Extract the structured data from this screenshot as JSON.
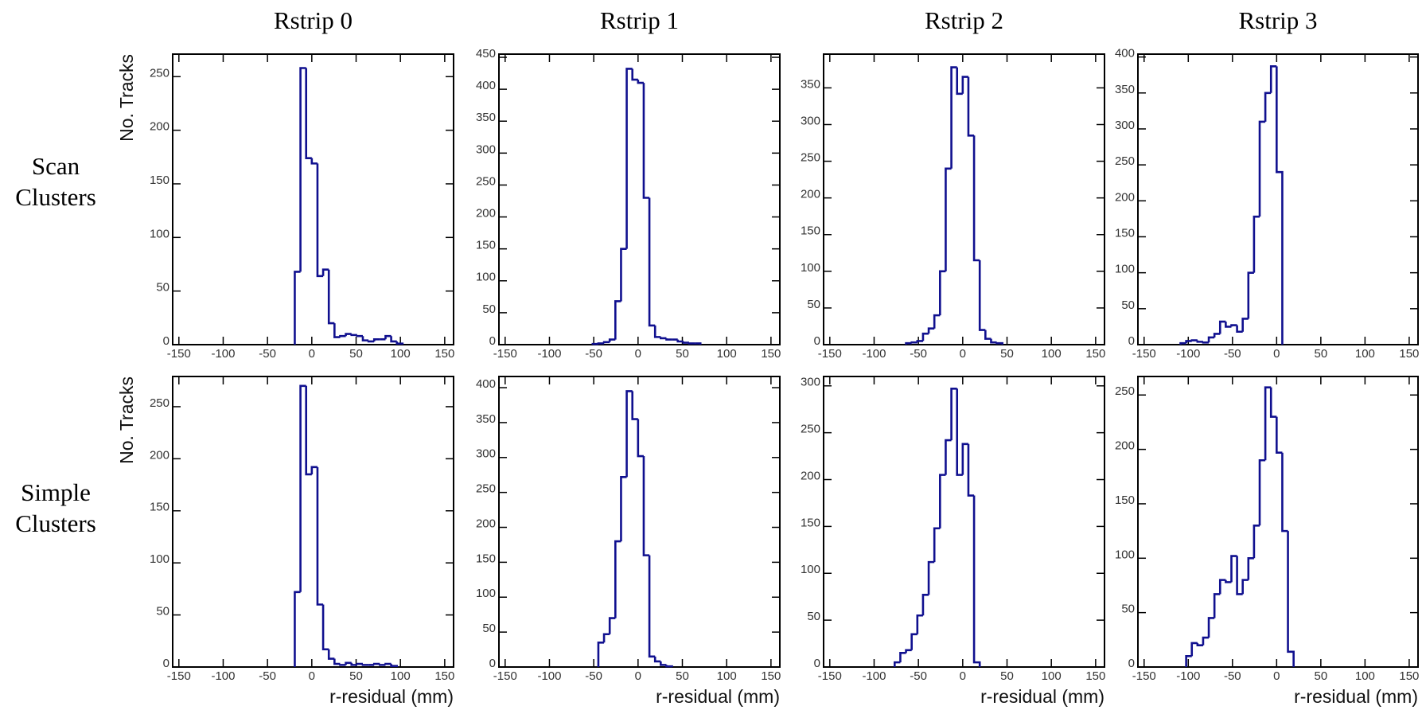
{
  "row_labels": [
    "Scan Clusters",
    "Simple Clusters"
  ],
  "chart_data": [
    {
      "type": "histogram",
      "title": "Rstrip 0",
      "ylabel": "No. Tracks",
      "color": "#10108f",
      "bins": [
        -19.2,
        -12.8,
        -6.4,
        0,
        6.4,
        12.8,
        19.2,
        25.6,
        32,
        38.4,
        44.8,
        51.2,
        57.6,
        64,
        70.4,
        76.8,
        83.2,
        89.6,
        96,
        102.4
      ],
      "values": [
        68,
        258,
        174,
        169,
        64,
        70,
        20,
        7,
        8,
        10,
        9,
        8,
        4,
        3,
        5,
        5,
        8,
        3,
        1
      ],
      "xlim": [
        -157,
        160
      ],
      "xticks": [
        -150,
        -100,
        -50,
        0,
        50,
        100,
        150
      ],
      "ylim": [
        0,
        271
      ],
      "yticks": [
        0,
        50,
        100,
        150,
        200,
        250
      ]
    },
    {
      "type": "histogram",
      "title": "Rstrip 1",
      "color": "#10108f",
      "bins": [
        -51.2,
        -44.8,
        -38.4,
        -32,
        -25.6,
        -19.2,
        -12.8,
        -6.4,
        0,
        6.4,
        12.8,
        19.2,
        25.6,
        32,
        38.4,
        44.8,
        51.2,
        57.6,
        64,
        70.4
      ],
      "values": [
        1,
        2,
        4,
        8,
        68,
        150,
        432,
        415,
        410,
        230,
        30,
        12,
        10,
        8,
        8,
        5,
        3,
        2,
        2
      ],
      "xlim": [
        -157,
        160
      ],
      "xticks": [
        -150,
        -100,
        -50,
        0,
        50,
        100,
        150
      ],
      "ylim": [
        0,
        455
      ],
      "yticks": [
        0,
        50,
        100,
        150,
        200,
        250,
        300,
        350,
        400,
        450
      ]
    },
    {
      "type": "histogram",
      "title": "Rstrip 2",
      "color": "#10108f",
      "bins": [
        -64,
        -57.6,
        -51.2,
        -44.8,
        -38.4,
        -32,
        -25.6,
        -19.2,
        -12.8,
        -6.4,
        0,
        6.4,
        12.8,
        19.2,
        25.6,
        32,
        38.4,
        44.8
      ],
      "values": [
        2,
        3,
        5,
        15,
        22,
        40,
        100,
        240,
        378,
        342,
        365,
        285,
        115,
        20,
        8,
        3,
        2
      ],
      "xlim": [
        -157,
        160
      ],
      "xticks": [
        -150,
        -100,
        -50,
        0,
        50,
        100,
        150
      ],
      "ylim": [
        0,
        396
      ],
      "yticks": [
        0,
        50,
        100,
        150,
        200,
        250,
        300,
        350
      ]
    },
    {
      "type": "histogram",
      "title": "Rstrip 3",
      "color": "#10108f",
      "bins": [
        -108.8,
        -102.4,
        -96,
        -89.6,
        -83.2,
        -76.8,
        -70.4,
        -64,
        -57.6,
        -51.2,
        -44.8,
        -38.4,
        -32,
        -25.6,
        -19.2,
        -12.8,
        -6.4,
        0,
        6.4
      ],
      "values": [
        2,
        5,
        6,
        4,
        3,
        10,
        15,
        32,
        25,
        27,
        18,
        36,
        100,
        178,
        310,
        350,
        387,
        240
      ],
      "xlim": [
        -157,
        160
      ],
      "xticks": [
        -150,
        -100,
        -50,
        0,
        50,
        100,
        150
      ],
      "ylim": [
        0,
        404
      ],
      "yticks": [
        0,
        50,
        100,
        150,
        200,
        250,
        300,
        350,
        400
      ]
    },
    {
      "type": "histogram",
      "ylabel": "No. Tracks",
      "xlabel": "r-residual (mm)",
      "color": "#10108f",
      "bins": [
        -19.2,
        -12.8,
        -6.4,
        0,
        6.4,
        12.8,
        19.2,
        25.6,
        32,
        38.4,
        44.8,
        51.2,
        57.6,
        64,
        70.4,
        76.8,
        83.2,
        89.6,
        96
      ],
      "values": [
        72,
        270,
        185,
        192,
        60,
        17,
        8,
        3,
        2,
        4,
        2,
        3,
        2,
        2,
        3,
        2,
        3,
        1
      ],
      "xlim": [
        -157,
        160
      ],
      "xticks": [
        -150,
        -100,
        -50,
        0,
        50,
        100,
        150
      ],
      "ylim": [
        0,
        279
      ],
      "yticks": [
        0,
        50,
        100,
        150,
        200,
        250
      ]
    },
    {
      "type": "histogram",
      "xlabel": "r-residual (mm)",
      "color": "#10108f",
      "bins": [
        -44.8,
        -38.4,
        -32,
        -25.6,
        -19.2,
        -12.8,
        -6.4,
        0,
        6.4,
        12.8,
        19.2,
        25.6,
        32,
        38.4
      ],
      "values": [
        35,
        47,
        70,
        180,
        272,
        395,
        355,
        302,
        160,
        15,
        8,
        3,
        1
      ],
      "xlim": [
        -157,
        160
      ],
      "xticks": [
        -150,
        -100,
        -50,
        0,
        50,
        100,
        150
      ],
      "ylim": [
        0,
        416
      ],
      "yticks": [
        0,
        50,
        100,
        150,
        200,
        250,
        300,
        350,
        400
      ]
    },
    {
      "type": "histogram",
      "xlabel": "r-residual (mm)",
      "color": "#10108f",
      "bins": [
        -76.8,
        -70.4,
        -64,
        -57.6,
        -51.2,
        -44.8,
        -38.4,
        -32,
        -25.6,
        -19.2,
        -12.8,
        -6.4,
        0,
        6.4,
        12.8,
        19.2
      ],
      "values": [
        5,
        15,
        18,
        35,
        55,
        77,
        112,
        148,
        205,
        242,
        297,
        205,
        238,
        183,
        5
      ],
      "xlim": [
        -157,
        160
      ],
      "xticks": [
        -150,
        -100,
        -50,
        0,
        50,
        100,
        150
      ],
      "ylim": [
        0,
        310
      ],
      "yticks": [
        0,
        50,
        100,
        150,
        200,
        250,
        300
      ]
    },
    {
      "type": "histogram",
      "xlabel": "r-residual (mm)",
      "color": "#10108f",
      "bins": [
        -102.4,
        -96,
        -89.6,
        -83.2,
        -76.8,
        -70.4,
        -64,
        -57.6,
        -51.2,
        -44.8,
        -38.4,
        -32,
        -25.6,
        -19.2,
        -12.8,
        -6.4,
        0,
        6.4,
        12.8,
        19.2
      ],
      "values": [
        10,
        22,
        20,
        27,
        45,
        67,
        80,
        78,
        102,
        67,
        80,
        100,
        130,
        190,
        257,
        230,
        197,
        125,
        14
      ],
      "xlim": [
        -157,
        160
      ],
      "xticks": [
        -150,
        -100,
        -50,
        0,
        50,
        100,
        150
      ],
      "ylim": [
        0,
        267
      ],
      "yticks": [
        0,
        50,
        100,
        150,
        200,
        250
      ]
    }
  ]
}
